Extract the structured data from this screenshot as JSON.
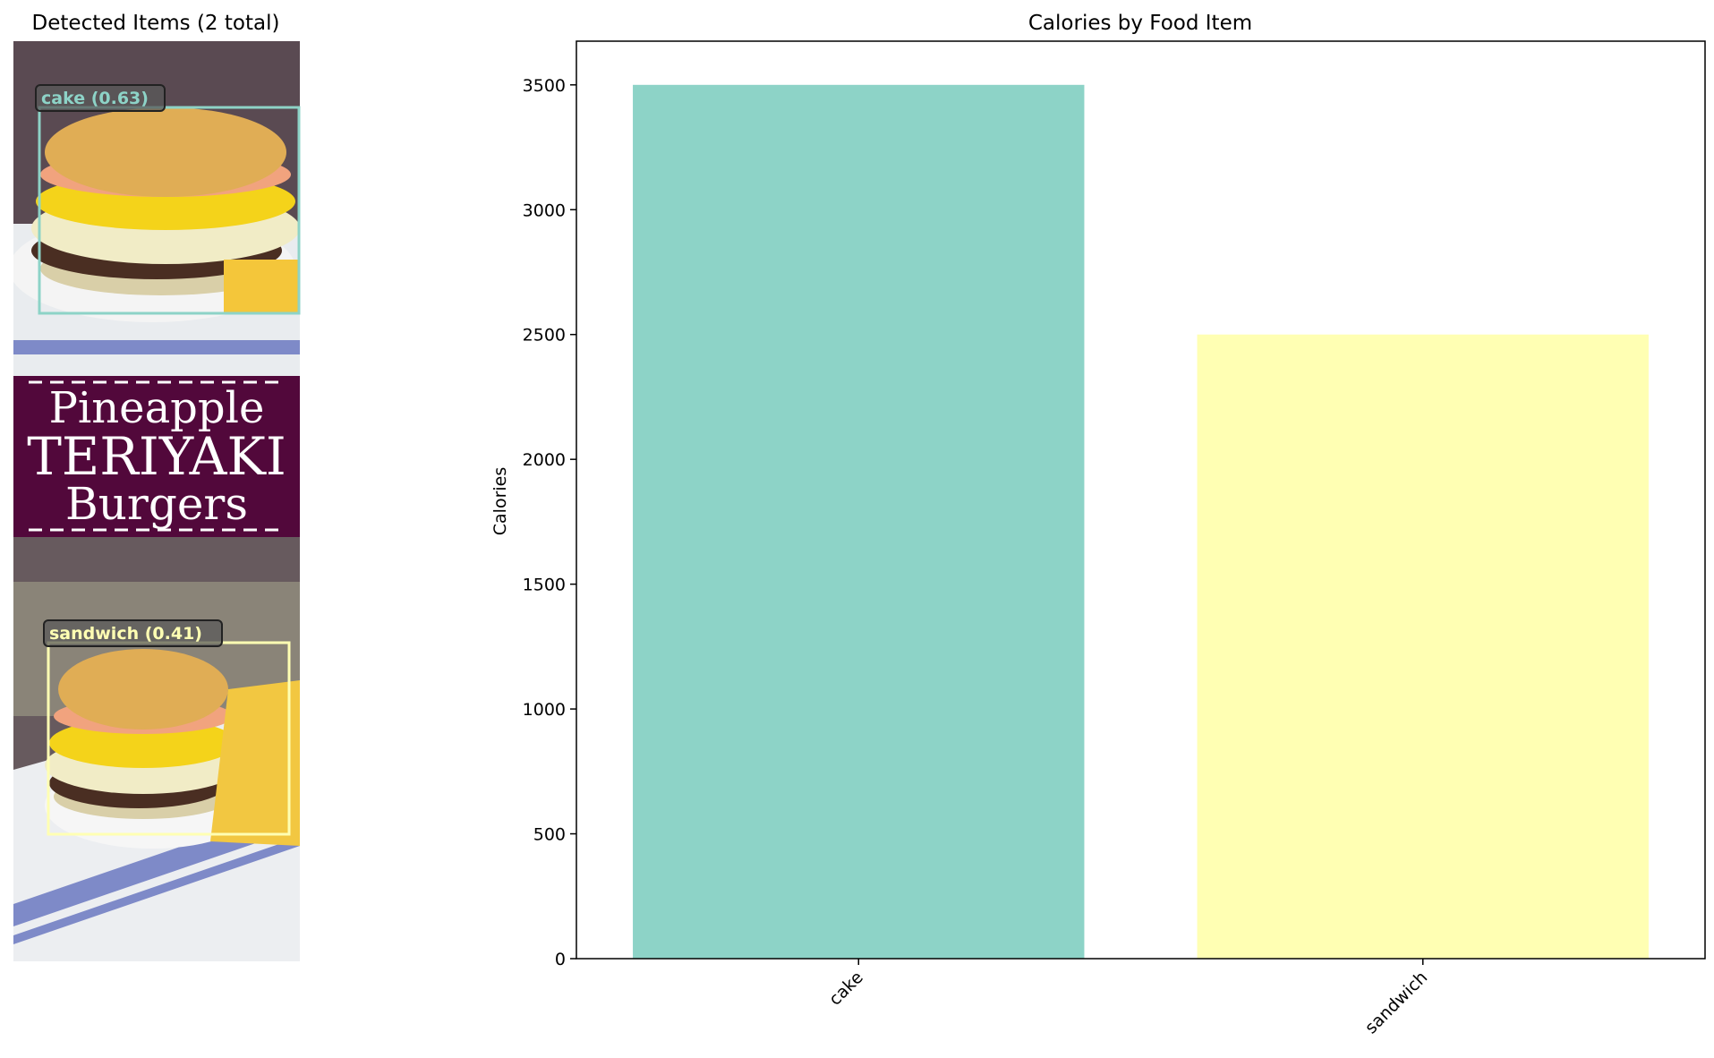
{
  "image_panel": {
    "title": "Detected Items (2 total)",
    "photo_text": [
      "Pineapple",
      "TERIYAKI",
      "Burgers"
    ],
    "detections": [
      {
        "label": "cake (0.63)",
        "color": "#8dd3c7"
      },
      {
        "label": "sandwich (0.41)",
        "color": "#ffffb3"
      }
    ]
  },
  "chart_data": {
    "type": "bar",
    "title": "Calories by Food Item",
    "xlabel": "",
    "ylabel": "Calories",
    "categories": [
      "cake",
      "sandwich"
    ],
    "values": [
      3500,
      2500
    ],
    "colors": [
      "#8dd3c7",
      "#ffffb3"
    ],
    "ylim": [
      0,
      3675
    ],
    "yticks": [
      0,
      500,
      1000,
      1500,
      2000,
      2500,
      3000,
      3500
    ],
    "grid": false
  }
}
